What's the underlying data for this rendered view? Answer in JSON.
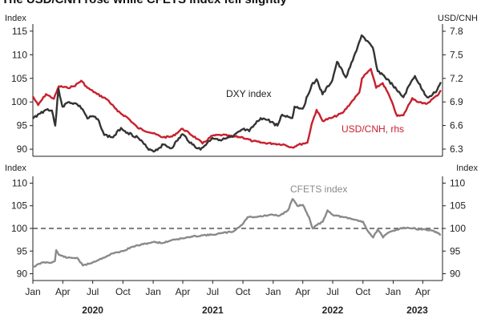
{
  "title": "The USD/CNH rose while CFETS index fell slightly",
  "colors": {
    "dxy": "#333333",
    "usdcnh": "#c8202d",
    "cfets": "#8a8a8a",
    "axis": "#222222",
    "ref": "#555555"
  },
  "chart_data": [
    {
      "type": "line",
      "ylabel": "Index",
      "y2label": "USD/CNH",
      "ylim": [
        88.5,
        116.5
      ],
      "ticks_left": [
        "115",
        "110",
        "105",
        "100",
        "95",
        "90"
      ],
      "ticks_right": [
        "7.8",
        "7.5",
        "7.2",
        "6.9",
        "6.6",
        "6.3"
      ],
      "y2lim": [
        6.3,
        7.8
      ],
      "series": [
        {
          "name": "DXY index",
          "axis": "left",
          "points": [
            [
              "2020-01-01",
              96.5
            ],
            [
              "2020-01-20",
              97.5
            ],
            [
              "2020-02-15",
              98.5
            ],
            [
              "2020-02-28",
              98.2
            ],
            [
              "2020-03-09",
              95.0
            ],
            [
              "2020-03-19",
              102.8
            ],
            [
              "2020-03-31",
              99.0
            ],
            [
              "2020-04-20",
              100.0
            ],
            [
              "2020-05-15",
              99.5
            ],
            [
              "2020-05-31",
              98.5
            ],
            [
              "2020-06-15",
              96.5
            ],
            [
              "2020-07-01",
              97.0
            ],
            [
              "2020-07-20",
              96.0
            ],
            [
              "2020-08-05",
              93.0
            ],
            [
              "2020-09-01",
              92.5
            ],
            [
              "2020-09-25",
              94.5
            ],
            [
              "2020-10-15",
              93.5
            ],
            [
              "2020-11-15",
              92.5
            ],
            [
              "2020-12-15",
              90.2
            ],
            [
              "2021-01-06",
              89.6
            ],
            [
              "2021-02-01",
              91.0
            ],
            [
              "2021-02-25",
              90.2
            ],
            [
              "2021-03-31",
              93.2
            ],
            [
              "2021-04-30",
              91.0
            ],
            [
              "2021-05-25",
              89.9
            ],
            [
              "2021-06-30",
              92.4
            ],
            [
              "2021-07-30",
              92.0
            ],
            [
              "2021-08-31",
              92.6
            ],
            [
              "2021-09-30",
              94.2
            ],
            [
              "2021-10-20",
              93.8
            ],
            [
              "2021-11-24",
              96.6
            ],
            [
              "2021-12-15",
              96.2
            ],
            [
              "2022-01-14",
              95.0
            ],
            [
              "2022-01-28",
              97.3
            ],
            [
              "2022-02-28",
              96.6
            ],
            [
              "2022-03-07",
              99.0
            ],
            [
              "2022-04-01",
              98.6
            ],
            [
              "2022-04-28",
              103.6
            ],
            [
              "2022-05-13",
              104.8
            ],
            [
              "2022-05-31",
              101.6
            ],
            [
              "2022-06-30",
              104.6
            ],
            [
              "2022-07-14",
              108.5
            ],
            [
              "2022-08-10",
              105.2
            ],
            [
              "2022-08-31",
              108.8
            ],
            [
              "2022-09-27",
              114.1
            ],
            [
              "2022-10-10",
              113.0
            ],
            [
              "2022-10-31",
              111.5
            ],
            [
              "2022-11-15",
              106.5
            ],
            [
              "2022-11-30",
              105.8
            ],
            [
              "2022-12-31",
              103.5
            ],
            [
              "2023-01-15",
              102.2
            ],
            [
              "2023-02-01",
              101.0
            ],
            [
              "2023-02-28",
              104.7
            ],
            [
              "2023-03-08",
              105.5
            ],
            [
              "2023-03-31",
              102.5
            ],
            [
              "2023-04-14",
              101.0
            ],
            [
              "2023-05-01",
              101.6
            ],
            [
              "2023-05-15",
              102.6
            ],
            [
              "2023-05-26",
              104.2
            ]
          ]
        },
        {
          "name": "USD/CNH, rhs",
          "axis": "right",
          "points": [
            [
              "2020-01-01",
              6.97
            ],
            [
              "2020-01-17",
              6.86
            ],
            [
              "2020-02-10",
              7.0
            ],
            [
              "2020-03-05",
              6.94
            ],
            [
              "2020-03-20",
              7.1
            ],
            [
              "2020-04-15",
              7.08
            ],
            [
              "2020-05-05",
              7.1
            ],
            [
              "2020-05-27",
              7.17
            ],
            [
              "2020-06-15",
              7.08
            ],
            [
              "2020-07-15",
              7.0
            ],
            [
              "2020-08-15",
              6.93
            ],
            [
              "2020-09-15",
              6.78
            ],
            [
              "2020-10-15",
              6.7
            ],
            [
              "2020-11-15",
              6.57
            ],
            [
              "2020-12-31",
              6.5
            ],
            [
              "2021-01-31",
              6.45
            ],
            [
              "2021-02-28",
              6.46
            ],
            [
              "2021-03-31",
              6.56
            ],
            [
              "2021-05-15",
              6.43
            ],
            [
              "2021-05-31",
              6.37
            ],
            [
              "2021-06-30",
              6.47
            ],
            [
              "2021-07-30",
              6.48
            ],
            [
              "2021-08-31",
              6.46
            ],
            [
              "2021-09-30",
              6.45
            ],
            [
              "2021-10-31",
              6.4
            ],
            [
              "2021-11-30",
              6.38
            ],
            [
              "2021-12-31",
              6.37
            ],
            [
              "2022-01-31",
              6.36
            ],
            [
              "2022-02-28",
              6.32
            ],
            [
              "2022-03-15",
              6.35
            ],
            [
              "2022-04-01",
              6.37
            ],
            [
              "2022-04-15",
              6.38
            ],
            [
              "2022-04-28",
              6.62
            ],
            [
              "2022-05-13",
              6.8
            ],
            [
              "2022-05-31",
              6.66
            ],
            [
              "2022-06-30",
              6.7
            ],
            [
              "2022-07-31",
              6.76
            ],
            [
              "2022-08-31",
              6.92
            ],
            [
              "2022-09-20",
              7.02
            ],
            [
              "2022-09-28",
              7.2
            ],
            [
              "2022-10-25",
              7.32
            ],
            [
              "2022-11-10",
              7.08
            ],
            [
              "2022-11-30",
              7.14
            ],
            [
              "2022-12-20",
              6.98
            ],
            [
              "2023-01-13",
              6.72
            ],
            [
              "2023-02-01",
              6.73
            ],
            [
              "2023-02-28",
              6.95
            ],
            [
              "2023-03-10",
              6.92
            ],
            [
              "2023-03-31",
              6.88
            ],
            [
              "2023-04-14",
              6.88
            ],
            [
              "2023-05-01",
              6.94
            ],
            [
              "2023-05-15",
              6.98
            ],
            [
              "2023-05-26",
              7.05
            ]
          ]
        }
      ],
      "annotations": [
        "DXY index",
        "USD/CNH, rhs"
      ]
    },
    {
      "type": "line",
      "ylabel": "Index",
      "y2label": "Index",
      "ylim": [
        88.5,
        111.5
      ],
      "ticks_left": [
        "110",
        "105",
        "100",
        "95",
        "90"
      ],
      "ticks_right": [
        "110",
        "105",
        "100",
        "95",
        "90"
      ],
      "reference_line": 100,
      "series": [
        {
          "name": "CFETS index",
          "axis": "left",
          "points": [
            [
              "2020-01-01",
              91.5
            ],
            [
              "2020-01-31",
              92.5
            ],
            [
              "2020-02-28",
              92.5
            ],
            [
              "2020-03-08",
              92.8
            ],
            [
              "2020-03-12",
              95.2
            ],
            [
              "2020-03-20",
              94.2
            ],
            [
              "2020-04-15",
              93.5
            ],
            [
              "2020-05-15",
              93.5
            ],
            [
              "2020-06-01",
              91.8
            ],
            [
              "2020-07-01",
              92.5
            ],
            [
              "2020-08-01",
              93.5
            ],
            [
              "2020-09-01",
              94.5
            ],
            [
              "2020-10-01",
              95.0
            ],
            [
              "2020-11-01",
              96.0
            ],
            [
              "2020-12-01",
              96.5
            ],
            [
              "2021-01-01",
              97.0
            ],
            [
              "2021-02-01",
              96.8
            ],
            [
              "2021-03-01",
              97.5
            ],
            [
              "2021-04-01",
              97.8
            ],
            [
              "2021-05-01",
              98.2
            ],
            [
              "2021-06-01",
              98.5
            ],
            [
              "2021-07-01",
              98.6
            ],
            [
              "2021-08-01",
              99.0
            ],
            [
              "2021-09-01",
              99.3
            ],
            [
              "2021-10-01",
              101.0
            ],
            [
              "2021-10-15",
              102.5
            ],
            [
              "2021-11-15",
              102.6
            ],
            [
              "2021-12-31",
              103.0
            ],
            [
              "2022-01-20",
              102.8
            ],
            [
              "2022-02-15",
              104.0
            ],
            [
              "2022-03-01",
              106.5
            ],
            [
              "2022-03-15",
              105.0
            ],
            [
              "2022-04-01",
              105.2
            ],
            [
              "2022-04-20",
              102.5
            ],
            [
              "2022-05-01",
              100.0
            ],
            [
              "2022-05-15",
              100.8
            ],
            [
              "2022-06-01",
              101.5
            ],
            [
              "2022-06-15",
              104.0
            ],
            [
              "2022-07-01",
              103.0
            ],
            [
              "2022-08-01",
              102.5
            ],
            [
              "2022-09-01",
              102.0
            ],
            [
              "2022-10-01",
              101.5
            ],
            [
              "2022-10-15",
              99.5
            ],
            [
              "2022-11-01",
              98.0
            ],
            [
              "2022-11-15",
              99.8
            ],
            [
              "2022-12-01",
              98.0
            ],
            [
              "2022-12-15",
              99.0
            ],
            [
              "2023-01-01",
              99.5
            ],
            [
              "2023-02-01",
              100.2
            ],
            [
              "2023-03-01",
              100.0
            ],
            [
              "2023-04-01",
              99.8
            ],
            [
              "2023-05-01",
              99.5
            ],
            [
              "2023-05-15",
              99.0
            ],
            [
              "2023-05-26",
              98.6
            ]
          ]
        }
      ],
      "annotations": [
        "CFETS index"
      ],
      "x_ticks": [
        "Jan",
        "Apr",
        "Jul",
        "Oct",
        "Jan",
        "Apr",
        "Jul",
        "Oct",
        "Jan",
        "Apr",
        "Jul",
        "Oct",
        "Jan",
        "Apr"
      ],
      "x_years": [
        "2020",
        "2021",
        "2022",
        "2023"
      ]
    }
  ]
}
